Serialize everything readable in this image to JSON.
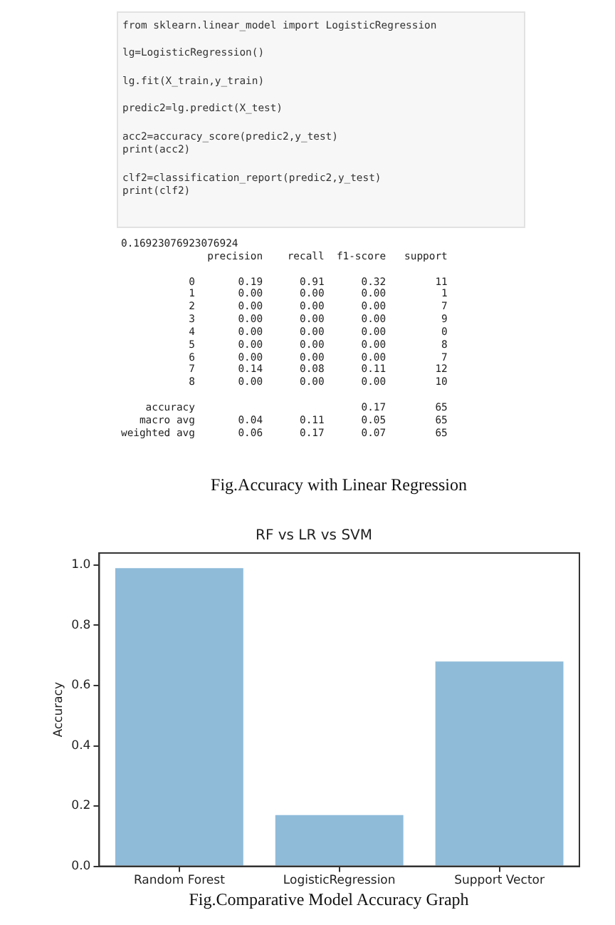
{
  "chart_data": {
    "type": "bar",
    "title": "RF vs LR vs SVM",
    "ylabel": "Accuracy",
    "categories": [
      "Random Forest",
      "LogisticRegression",
      "Support Vector"
    ],
    "values": [
      0.99,
      0.17,
      0.68
    ],
    "color": "#8fbbd9",
    "ylim": [
      0,
      1.04
    ],
    "yticks": [
      {
        "value": 0,
        "label": "0.0"
      },
      0.2,
      0.4,
      0.6,
      0.8,
      {
        "value": 1,
        "label": "1.0"
      }
    ],
    "legend": false,
    "annotations": [
      "from sklearn.linear_model import LogisticRegression\n\nlg=LogisticRegression()\n\nlg.fit(X_train,y_train)\n\npredic2=lg.predict(X_test)\n\nacc2=accuracy_score(predic2,y_test)\nprint(acc2)\n\nclf2=classification_report(predic2,y_test)\nprint(clf2)",
      "0.16923076923076924\n              precision    recall  f1-score   support\n\n           0       0.19      0.91      0.32        11\n           1       0.00      0.00      0.00         1\n           2       0.00      0.00      0.00         7\n           3       0.00      0.00      0.00         9\n           4       0.00      0.00      0.00         0\n           5       0.00      0.00      0.00         8\n           6       0.00      0.00      0.00         7\n           7       0.14      0.08      0.11        12\n           8       0.00      0.00      0.00        10\n\n    accuracy                           0.17        65\n   macro avg       0.04      0.11      0.05        65\nweighted avg       0.06      0.17      0.07        65",
      "Fig.Accuracy with Linear Regression",
      "Fig.Comparative Model Accuracy Graph"
    ]
  }
}
